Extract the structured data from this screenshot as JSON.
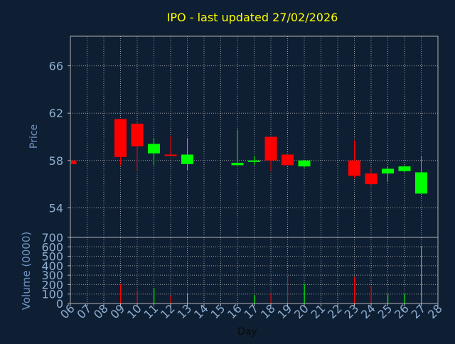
{
  "chart_data": [
    {
      "type": "candlestick",
      "title": "IPO - last updated 27/02/2026",
      "ylabel": "Price",
      "ylim": [
        51.5,
        68.5
      ],
      "yticks": [
        54,
        58,
        62,
        66
      ],
      "grid": true,
      "up_color": "#00ff00",
      "down_color": "#ff0000",
      "categories": [
        "06",
        "07",
        "08",
        "09",
        "10",
        "11",
        "12",
        "13",
        "14",
        "15",
        "16",
        "17",
        "18",
        "19",
        "20",
        "21",
        "22",
        "23",
        "24",
        "25",
        "26",
        "27",
        "28"
      ],
      "candles": [
        {
          "day": "06",
          "open": 58.0,
          "close": 57.7,
          "high": 58.0,
          "low": 57.7
        },
        {
          "day": "09",
          "open": 61.5,
          "close": 58.3,
          "high": 61.5,
          "low": 57.6
        },
        {
          "day": "10",
          "open": 61.1,
          "close": 59.2,
          "high": 61.2,
          "low": 57.1
        },
        {
          "day": "11",
          "open": 58.6,
          "close": 59.4,
          "high": 59.9,
          "low": 57.6
        },
        {
          "day": "12",
          "open": 58.5,
          "close": 58.4,
          "high": 60.1,
          "low": 58.4
        },
        {
          "day": "13",
          "open": 57.7,
          "close": 58.5,
          "high": 59.9,
          "low": 57.2
        },
        {
          "day": "16",
          "open": 57.6,
          "close": 57.8,
          "high": 60.6,
          "low": 57.6
        },
        {
          "day": "17",
          "open": 57.9,
          "close": 58.0,
          "high": 58.4,
          "low": 57.6
        },
        {
          "day": "18",
          "open": 60.0,
          "close": 58.0,
          "high": 60.0,
          "low": 57.1
        },
        {
          "day": "19",
          "open": 58.5,
          "close": 57.6,
          "high": 58.5,
          "low": 57.6
        },
        {
          "day": "20",
          "open": 57.5,
          "close": 58.0,
          "high": 58.0,
          "low": 57.4
        },
        {
          "day": "23",
          "open": 58.0,
          "close": 56.7,
          "high": 59.7,
          "low": 56.5
        },
        {
          "day": "24",
          "open": 56.9,
          "close": 56.0,
          "high": 57.4,
          "low": 55.8
        },
        {
          "day": "25",
          "open": 56.9,
          "close": 57.3,
          "high": 57.5,
          "low": 56.2
        },
        {
          "day": "26",
          "open": 57.1,
          "close": 57.5,
          "high": 57.6,
          "low": 57.0
        },
        {
          "day": "27",
          "open": 55.2,
          "close": 57.0,
          "high": 58.4,
          "low": 55.2
        }
      ]
    },
    {
      "type": "bar",
      "ylabel": "Volume (0000)",
      "xlabel": "Day",
      "ylim": [
        0,
        700
      ],
      "yticks": [
        0,
        100,
        200,
        300,
        400,
        500,
        600,
        700
      ],
      "grid": true,
      "categories": [
        "06",
        "07",
        "08",
        "09",
        "10",
        "11",
        "12",
        "13",
        "14",
        "15",
        "16",
        "17",
        "18",
        "19",
        "20",
        "21",
        "22",
        "23",
        "24",
        "25",
        "26",
        "27",
        "28"
      ],
      "bars": [
        {
          "day": "09",
          "value": 205,
          "color": "#ff0000"
        },
        {
          "day": "10",
          "value": 140,
          "color": "#ff0000"
        },
        {
          "day": "11",
          "value": 165,
          "color": "#00ff00"
        },
        {
          "day": "12",
          "value": 85,
          "color": "#ff0000"
        },
        {
          "day": "13",
          "value": 105,
          "color": "#00ff00"
        },
        {
          "day": "17",
          "value": 90,
          "color": "#00ff00"
        },
        {
          "day": "18",
          "value": 110,
          "color": "#ff0000"
        },
        {
          "day": "19",
          "value": 290,
          "color": "#ff0000"
        },
        {
          "day": "20",
          "value": 205,
          "color": "#00ff00"
        },
        {
          "day": "23",
          "value": 280,
          "color": "#ff0000"
        },
        {
          "day": "24",
          "value": 190,
          "color": "#ff0000"
        },
        {
          "day": "25",
          "value": 95,
          "color": "#00ff00"
        },
        {
          "day": "26",
          "value": 100,
          "color": "#00ff00"
        },
        {
          "day": "27",
          "value": 610,
          "color": "#00ff00"
        }
      ]
    }
  ],
  "colors": {
    "background": "#0f1f33",
    "frame": "#b0b0b0",
    "title": "#ffff00",
    "label": "#6f94c4",
    "tick": "#8faed0",
    "grid": "#c8c8c8"
  }
}
